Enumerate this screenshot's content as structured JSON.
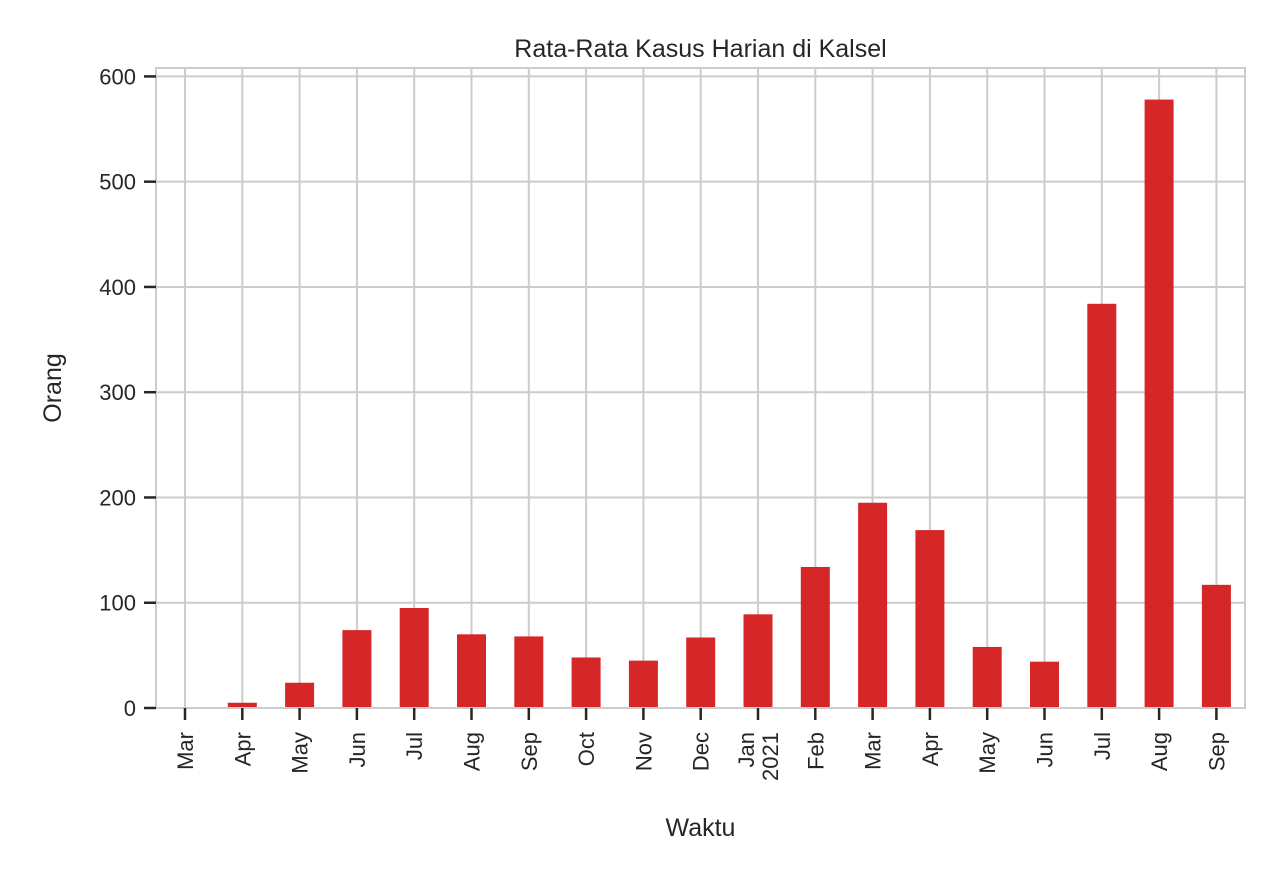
{
  "chart_data": {
    "type": "bar",
    "title": "Rata-Rata Kasus Harian di Kalsel",
    "xlabel": "Waktu",
    "ylabel": "Orang",
    "ylim": [
      0,
      608
    ],
    "yticks": [
      0,
      100,
      200,
      300,
      400,
      500,
      600
    ],
    "categories": [
      "Mar",
      "Apr",
      "May",
      "Jun",
      "Jul",
      "Aug",
      "Sep",
      "Oct",
      "Nov",
      "Dec",
      "Jan\n2021",
      "Feb",
      "Mar",
      "Apr",
      "May",
      "Jun",
      "Jul",
      "Aug",
      "Sep"
    ],
    "values": [
      0,
      5,
      24,
      74,
      95,
      70,
      68,
      48,
      45,
      67,
      89,
      134,
      195,
      169,
      58,
      44,
      384,
      578,
      117
    ],
    "grid": true,
    "bar_color": "#d62728"
  }
}
